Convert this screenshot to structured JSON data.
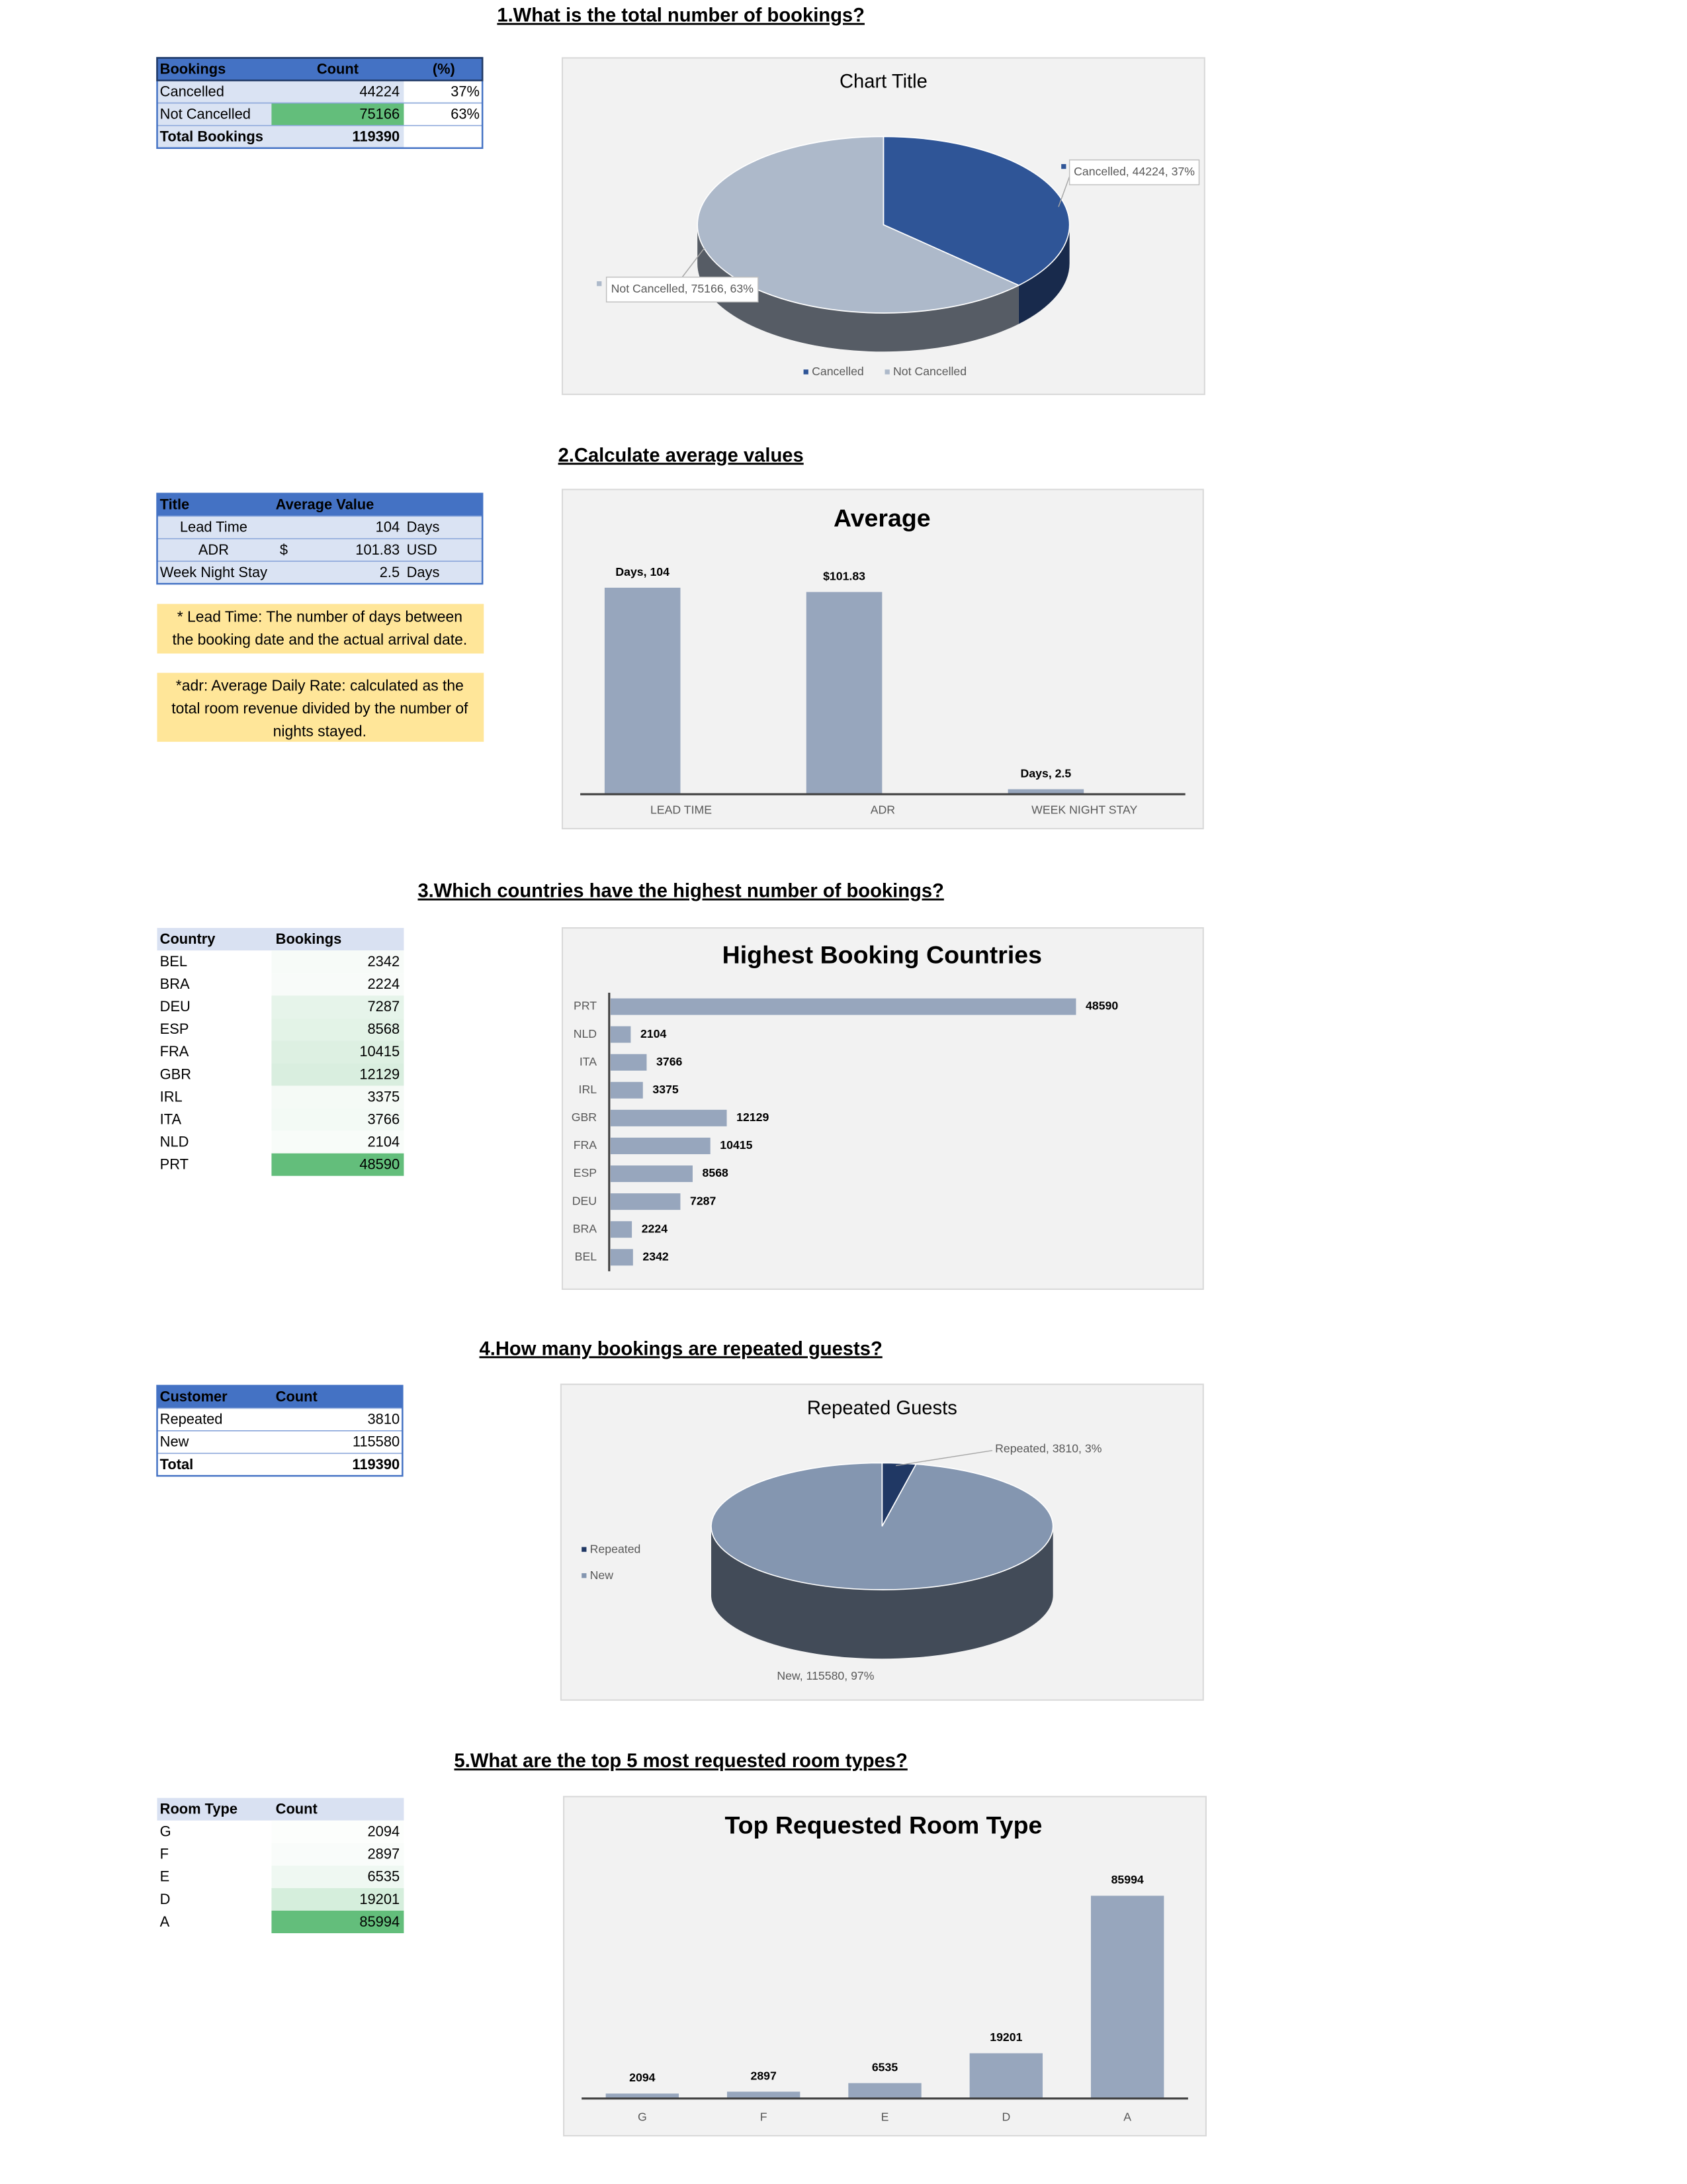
{
  "sections": [
    {
      "heading": "1.What is the total number of bookings?",
      "table": {
        "columns": [
          "Bookings",
          "Count",
          "(%)"
        ],
        "rows": [
          [
            "Cancelled",
            "44224",
            "37%"
          ],
          [
            "Not Cancelled",
            "75166",
            "63%"
          ],
          [
            "Total Bookings",
            "119390",
            null
          ]
        ],
        "fills": [
          null,
          "#63be7b",
          null
        ]
      }
    },
    {
      "heading": "2.Calculate average values",
      "table": {
        "columns": [
          "Title",
          "Average Value"
        ],
        "rows": [
          [
            "Lead Time",
            null,
            "104",
            "Days"
          ],
          [
            "ADR",
            "$",
            "101.83",
            "USD"
          ],
          [
            "Week Night Stay",
            null,
            "2.5",
            "Days"
          ]
        ]
      },
      "notes": [
        [
          "* Lead Time: The number of days between",
          "the booking date and the actual arrival date."
        ],
        [
          "*adr: Average Daily Rate: calculated as the",
          "total room revenue divided by the number of",
          "nights stayed."
        ]
      ]
    },
    {
      "heading": "3.Which countries have the highest number of bookings?",
      "table": {
        "columns": [
          "Country",
          "Bookings"
        ],
        "rows": [
          [
            "BEL",
            "2342"
          ],
          [
            "BRA",
            "2224"
          ],
          [
            "DEU",
            "7287"
          ],
          [
            "ESP",
            "8568"
          ],
          [
            "FRA",
            "10415"
          ],
          [
            "GBR",
            "12129"
          ],
          [
            "IRL",
            "3375"
          ],
          [
            "ITA",
            "3766"
          ],
          [
            "NLD",
            "2104"
          ],
          [
            "PRT",
            "48590"
          ]
        ],
        "fills": [
          "#f7fbf8",
          "#f8fbf9",
          "#e6f4ea",
          "#e3f3e7",
          "#ddf0e2",
          "#d9eedf",
          "#f5faf6",
          "#f3faf5",
          "#f8fcf9",
          "#63be7b"
        ]
      }
    },
    {
      "heading": "4.How many bookings are repeated guests?",
      "table": {
        "columns": [
          "Customer",
          "Count"
        ],
        "rows": [
          [
            "Repeated",
            "3810"
          ],
          [
            "New",
            "115580"
          ],
          [
            "Total",
            "119390"
          ]
        ]
      }
    },
    {
      "heading": "5.What are the top 5 most requested room types?",
      "table": {
        "columns": [
          "Room Type",
          "Count"
        ],
        "rows": [
          [
            "G",
            "2094"
          ],
          [
            "F",
            "2897"
          ],
          [
            "E",
            "6535"
          ],
          [
            "D",
            "19201"
          ],
          [
            "A",
            "85994"
          ]
        ],
        "fills": [
          "#fcfefc",
          "#f9fcfa",
          "#eff8f2",
          "#d5eedc",
          "#63be7b"
        ]
      }
    }
  ],
  "chart_data": [
    {
      "type": "pie",
      "title": "Chart Title",
      "categories": [
        "Cancelled",
        "Not Cancelled"
      ],
      "values": [
        44224,
        75166
      ],
      "value_labels": [
        "Cancelled, 44224, 37%",
        "Not Cancelled, 75166, 63%"
      ],
      "colors": [
        "#2f5597",
        "#adb9ca"
      ],
      "legend": "bottom"
    },
    {
      "type": "bar",
      "title": "Average",
      "categories": [
        "LEAD TIME",
        "ADR",
        "WEEK NIGHT STAY"
      ],
      "values": [
        104,
        101.83,
        2.5
      ],
      "value_labels": [
        "Days, 104",
        "$101.83",
        "Days, 2.5"
      ],
      "color": "#97a6bd",
      "ylim": [
        0,
        120
      ]
    },
    {
      "type": "bar",
      "orientation": "horizontal",
      "title": "Highest Booking Countries",
      "categories": [
        "BEL",
        "BRA",
        "DEU",
        "ESP",
        "FRA",
        "GBR",
        "IRL",
        "ITA",
        "NLD",
        "PRT"
      ],
      "values": [
        2342,
        2224,
        7287,
        8568,
        10415,
        12129,
        3375,
        3766,
        2104,
        48590
      ],
      "color": "#97a6bd",
      "xlim": [
        0,
        60000
      ]
    },
    {
      "type": "pie",
      "title": "Repeated Guests",
      "categories": [
        "Repeated",
        "New"
      ],
      "values": [
        3810,
        115580
      ],
      "value_labels": [
        "Repeated, 3810, 3%",
        "New, 115580, 97%"
      ],
      "colors": [
        "#203864",
        "#8496b0"
      ],
      "legend": "left"
    },
    {
      "type": "bar",
      "title": "Top Requested Room Type",
      "categories": [
        "G",
        "F",
        "E",
        "D",
        "A"
      ],
      "values": [
        2094,
        2897,
        6535,
        19201,
        85994
      ],
      "color": "#97a6bd",
      "ylim": [
        0,
        100000
      ]
    }
  ]
}
